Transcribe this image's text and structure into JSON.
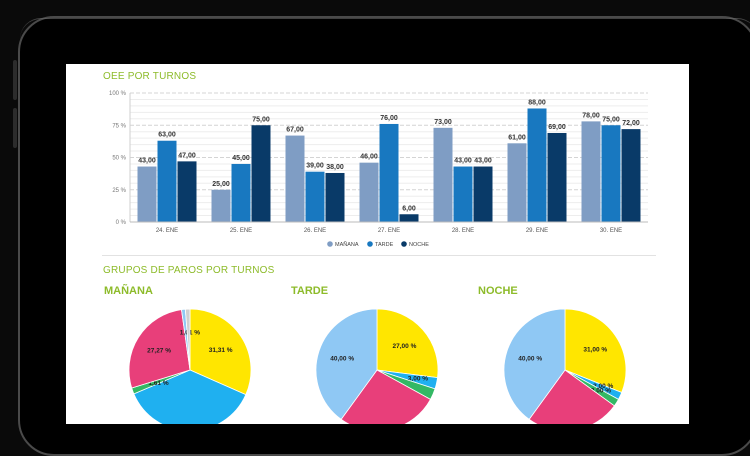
{
  "colors": {
    "accent": "#8dbb2a",
    "manana": "#7f9dc4",
    "tarde": "#1878c0",
    "noche": "#093a68"
  },
  "oee": {
    "title": "OEE POR TURNOS",
    "chart_data": {
      "type": "bar",
      "categories": [
        "24. ENE",
        "25. ENE",
        "26. ENE",
        "27. ENE",
        "28. ENE",
        "29. ENE",
        "30. ENE"
      ],
      "series": [
        {
          "name": "MAÑANA",
          "values": [
            43,
            25,
            67,
            46,
            73,
            61,
            78
          ],
          "labels": [
            "43,00",
            "25,00",
            "67,00",
            "46,00",
            "73,00",
            "61,00",
            "78,00"
          ]
        },
        {
          "name": "TARDE",
          "values": [
            63,
            45,
            39,
            76,
            43,
            88,
            75
          ],
          "labels": [
            "63,00",
            "45,00",
            "39,00",
            "76,00",
            "43,00",
            "88,00",
            "75,00"
          ]
        },
        {
          "name": "NOCHE",
          "values": [
            47,
            75,
            38,
            6,
            43,
            69,
            72
          ],
          "labels": [
            "47,00",
            "75,00",
            "38,00",
            "6,00",
            "43,00",
            "69,00",
            "72,00"
          ]
        }
      ],
      "yticks": [
        "0 %",
        "25 %",
        "50 %",
        "75 %",
        "100 %"
      ],
      "ylim": [
        0,
        100
      ],
      "grid": true,
      "legend": "bottom-center"
    }
  },
  "paros": {
    "title": "GRUPOS DE PAROS POR TURNOS",
    "charts": [
      {
        "title": "MAÑANA",
        "chart_data": {
          "type": "pie",
          "slices": [
            {
              "label": "31,31 %",
              "value": 31.31,
              "color": "#ffe600"
            },
            {
              "label": "",
              "value": 36.6,
              "color": "#1fb0f0"
            },
            {
              "label": "1,61 %",
              "value": 1.61,
              "color": "#33b864"
            },
            {
              "label": "27,27 %",
              "value": 27.27,
              "color": "#e83f7a"
            },
            {
              "label": "1,01 %",
              "value": 1.01,
              "color": "#8fc8f4"
            },
            {
              "label": "",
              "value": 1.2,
              "color": "#d0d0d0"
            }
          ]
        }
      },
      {
        "title": "TARDE",
        "chart_data": {
          "type": "pie",
          "slices": [
            {
              "label": "27,00 %",
              "value": 27,
              "color": "#ffe600"
            },
            {
              "label": "3,00 %",
              "value": 3,
              "color": "#1fb0f0"
            },
            {
              "label": "",
              "value": 3,
              "color": "#33b864"
            },
            {
              "label": "",
              "value": 27,
              "color": "#e83f7a"
            },
            {
              "label": "40,00 %",
              "value": 40,
              "color": "#8fc8f4"
            }
          ]
        }
      },
      {
        "title": "NOCHE",
        "chart_data": {
          "type": "pie",
          "slices": [
            {
              "label": "31,00 %",
              "value": 31,
              "color": "#ffe600"
            },
            {
              "label": "2,00 %",
              "value": 2,
              "color": "#1fb0f0"
            },
            {
              "label": "2,00 %",
              "value": 2,
              "color": "#33b864"
            },
            {
              "label": "",
              "value": 25,
              "color": "#e83f7a"
            },
            {
              "label": "40,00 %",
              "value": 40,
              "color": "#8fc8f4"
            }
          ]
        }
      }
    ]
  }
}
